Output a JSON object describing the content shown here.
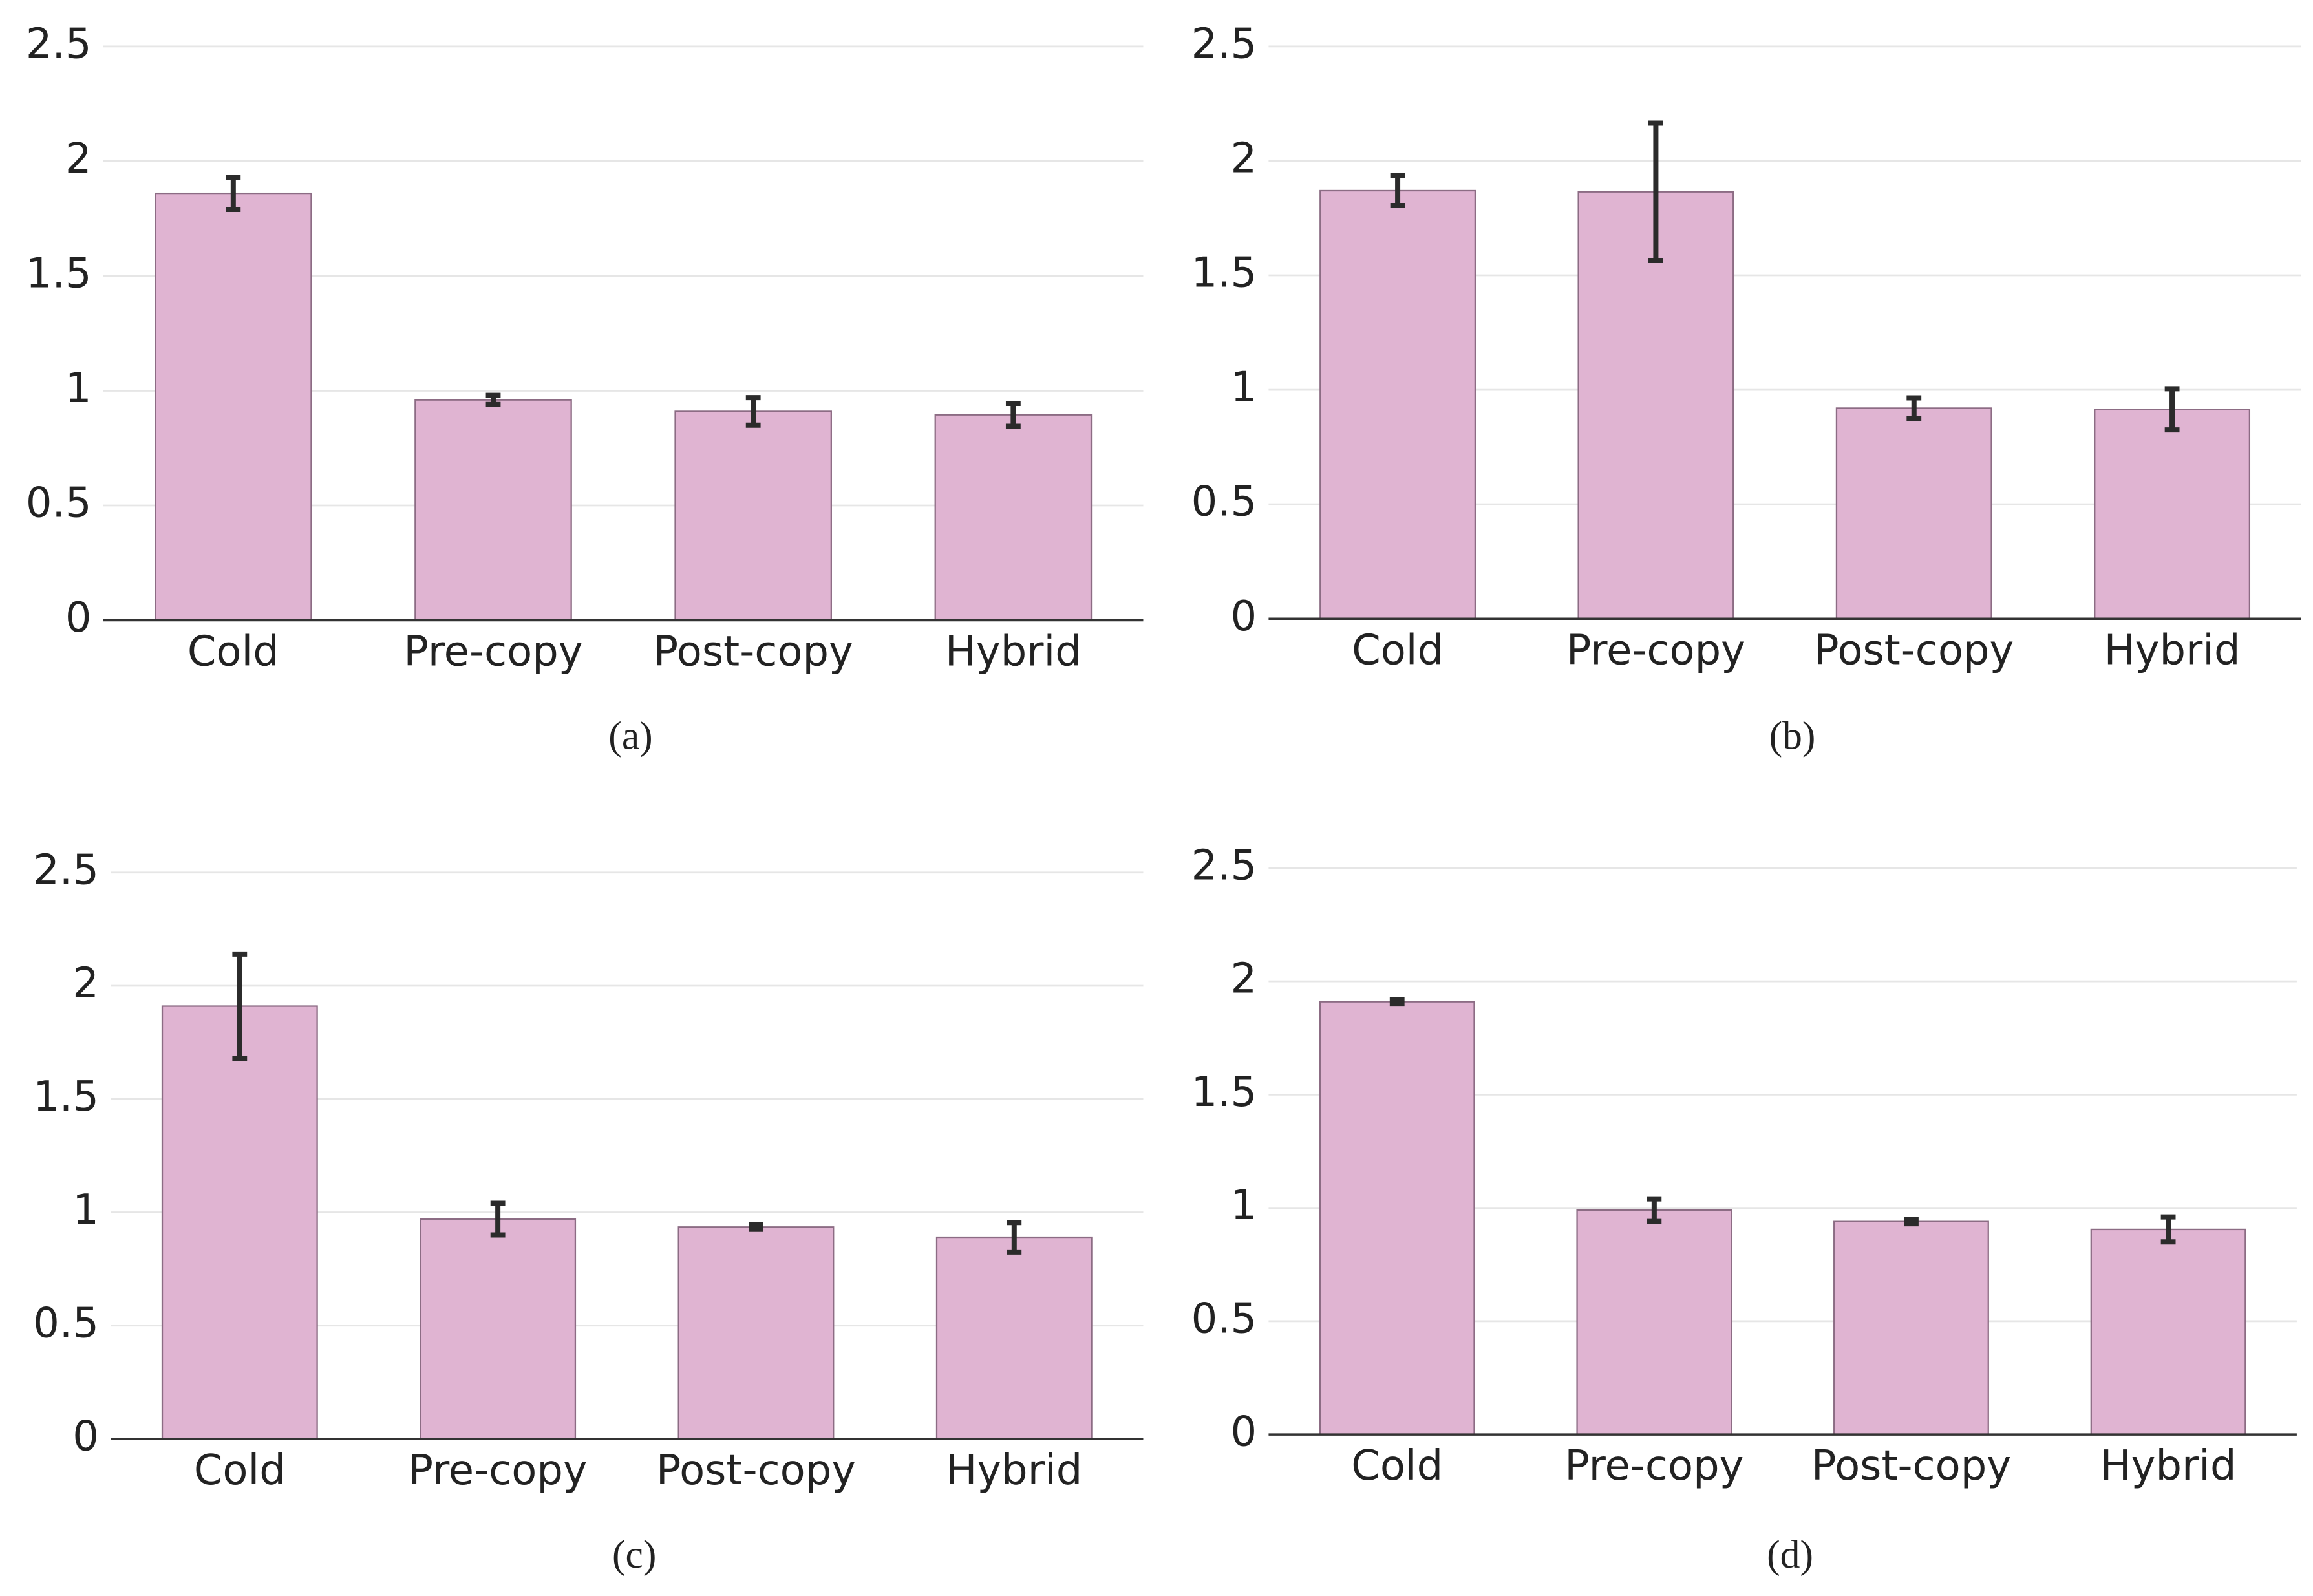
{
  "chart_data": [
    {
      "type": "bar",
      "caption": "(a)",
      "categories": [
        "Cold",
        "Pre-copy",
        "Post-copy",
        "Hybrid"
      ],
      "values": [
        1.86,
        0.96,
        0.91,
        0.895
      ],
      "errors": [
        0.07,
        0.02,
        0.06,
        0.05
      ],
      "color": "#e0b4d2",
      "error_color": "#2b2b2b",
      "ylim": [
        0,
        2.5
      ],
      "yticks": [
        0,
        0.5,
        1,
        1.5,
        2,
        2.5
      ],
      "grid": true
    },
    {
      "type": "bar",
      "caption": "(b)",
      "categories": [
        "Cold",
        "Pre-copy",
        "Post-copy",
        "Hybrid"
      ],
      "values": [
        1.87,
        1.865,
        0.92,
        0.915
      ],
      "errors": [
        0.065,
        0.3,
        0.045,
        0.09
      ],
      "color": "#e0b4d2",
      "error_color": "#2b2b2b",
      "ylim": [
        0,
        2.5
      ],
      "yticks": [
        0,
        0.5,
        1,
        1.5,
        2,
        2.5
      ],
      "grid": true
    },
    {
      "type": "bar",
      "caption": "(c)",
      "categories": [
        "Cold",
        "Pre-copy",
        "Post-copy",
        "Hybrid"
      ],
      "values": [
        1.91,
        0.97,
        0.935,
        0.89
      ],
      "errors": [
        0.23,
        0.07,
        0.01,
        0.065
      ],
      "color": "#e0b4d2",
      "error_color": "#2b2b2b",
      "ylim": [
        0,
        2.5
      ],
      "yticks": [
        0,
        0.5,
        1,
        1.5,
        2,
        2.5
      ],
      "grid": true
    },
    {
      "type": "bar",
      "caption": "(d)",
      "categories": [
        "Cold",
        "Pre-copy",
        "Post-copy",
        "Hybrid"
      ],
      "values": [
        1.91,
        0.99,
        0.94,
        0.905
      ],
      "errors": [
        0.01,
        0.05,
        0.01,
        0.055
      ],
      "color": "#e0b4d2",
      "error_color": "#2b2b2b",
      "ylim": [
        0,
        2.5
      ],
      "yticks": [
        0,
        0.5,
        1,
        1.5,
        2,
        2.5
      ],
      "grid": true
    }
  ]
}
